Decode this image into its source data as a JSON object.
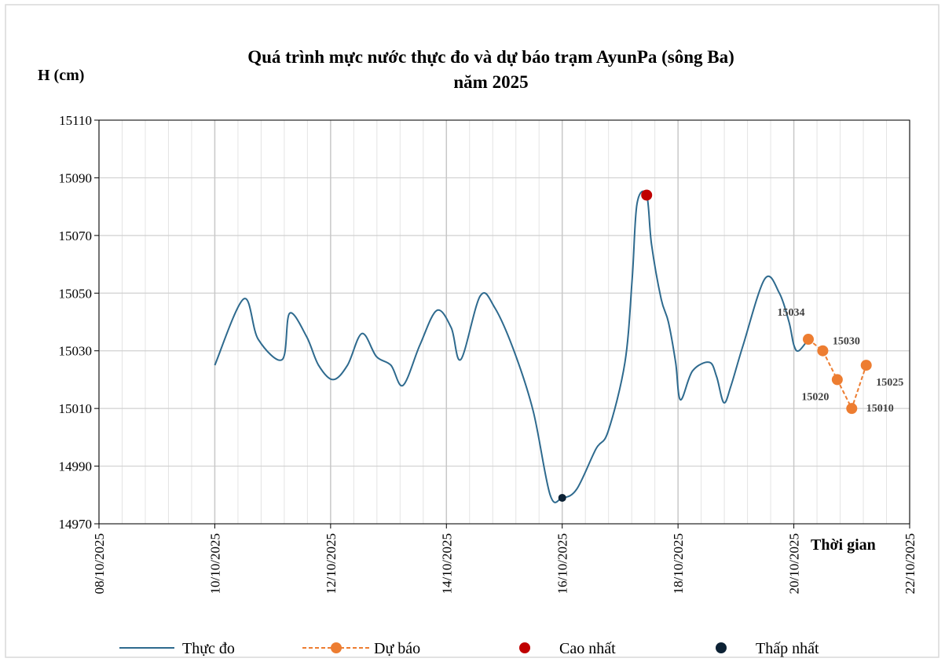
{
  "chart_data": {
    "type": "line",
    "title": [
      "Quá trình mực nước thực đo và dự báo trạm AyunPa (sông Ba)",
      "năm 2025"
    ],
    "y_label": "H (cm)",
    "x_label": "Thời gian",
    "xlim": [
      "2025-10-08T00:00",
      "2025-10-22T00:00"
    ],
    "xticks": [
      {
        "value": "2025-10-08T00:00",
        "label": "08/10/2025"
      },
      {
        "value": "2025-10-10T00:00",
        "label": "10/10/2025"
      },
      {
        "value": "2025-10-12T00:00",
        "label": "12/10/2025"
      },
      {
        "value": "2025-10-14T00:00",
        "label": "14/10/2025"
      },
      {
        "value": "2025-10-16T00:00",
        "label": "16/10/2025"
      },
      {
        "value": "2025-10-18T00:00",
        "label": "18/10/2025"
      },
      {
        "value": "2025-10-20T00:00",
        "label": "20/10/2025"
      },
      {
        "value": "2025-10-22T00:00",
        "label": "22/10/2025"
      }
    ],
    "ylim": [
      14970,
      15110
    ],
    "yticks": [
      14970,
      14990,
      15010,
      15030,
      15050,
      15070,
      15090,
      15110
    ],
    "grid": true,
    "series": [
      {
        "name": "Thực đo",
        "color": "#2e6a8e",
        "style": "solid",
        "x": [
          "2025-10-10T00:00",
          "2025-10-10T12:00",
          "2025-10-10T18:00",
          "2025-10-11T04:00",
          "2025-10-11T07:00",
          "2025-10-11T14:00",
          "2025-10-11T19:00",
          "2025-10-12T01:00",
          "2025-10-12T07:00",
          "2025-10-12T13:00",
          "2025-10-12T19:00",
          "2025-10-13T01:00",
          "2025-10-13T06:00",
          "2025-10-13T13:00",
          "2025-10-13T20:00",
          "2025-10-14T02:00",
          "2025-10-14T06:00",
          "2025-10-14T14:00",
          "2025-10-14T20:00",
          "2025-10-15T04:00",
          "2025-10-15T12:00",
          "2025-10-15T19:00",
          "2025-10-16T00:00",
          "2025-10-16T06:00",
          "2025-10-16T14:00",
          "2025-10-16T19:00",
          "2025-10-17T02:00",
          "2025-10-17T05:00",
          "2025-10-17T07:00",
          "2025-10-17T11:00",
          "2025-10-17T13:00",
          "2025-10-17T17:00",
          "2025-10-17T20:00",
          "2025-10-17T23:00",
          "2025-10-18T01:00",
          "2025-10-18T06:00",
          "2025-10-18T13:00",
          "2025-10-18T16:00",
          "2025-10-18T19:00",
          "2025-10-18T22:00",
          "2025-10-19T03:00",
          "2025-10-19T12:00",
          "2025-10-19T18:00",
          "2025-10-19T22:00",
          "2025-10-20T00:00",
          "2025-10-20T02:00",
          "2025-10-20T06:00"
        ],
        "values": [
          15025,
          15048,
          15034,
          15027,
          15043,
          15035,
          15025,
          15020,
          15025,
          15036,
          15028,
          15025,
          15018,
          15032,
          15044,
          15038,
          15027,
          15049,
          15045,
          15030,
          15009,
          14980,
          14979,
          14982,
          14996,
          15002,
          15026,
          15055,
          15081,
          15084,
          15067,
          15048,
          15040,
          15026,
          15013,
          15023,
          15026,
          15021,
          15012,
          15018,
          15032,
          15055,
          15050,
          15040,
          15032,
          15030,
          15034
        ]
      },
      {
        "name": "Dự báo",
        "color": "#ed7d31",
        "style": "dashed-marker",
        "labels": true,
        "x": [
          "2025-10-20T06:00",
          "2025-10-20T12:00",
          "2025-10-20T18:00",
          "2025-10-21T00:00",
          "2025-10-21T06:00"
        ],
        "values": [
          15034,
          15030,
          15020,
          15010,
          15025
        ]
      },
      {
        "name": "Cao nhất",
        "color": "#c00000",
        "style": "marker",
        "size": 7,
        "x": [
          "2025-10-17T11:00"
        ],
        "values": [
          15084
        ]
      },
      {
        "name": "Thấp nhất",
        "color": "#0d2235",
        "style": "marker",
        "size": 5,
        "x": [
          "2025-10-16T00:00"
        ],
        "values": [
          14979
        ]
      }
    ]
  }
}
